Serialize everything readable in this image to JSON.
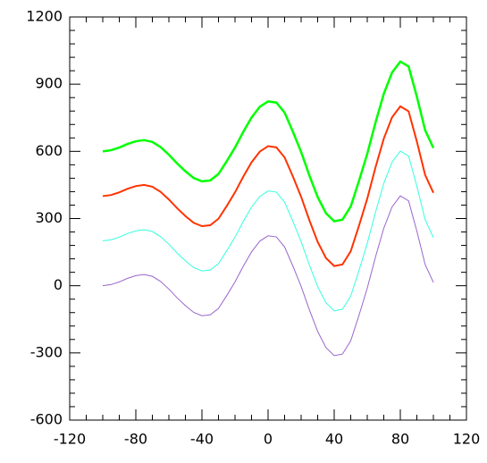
{
  "chart_data": {
    "type": "line",
    "x": [
      -100,
      -95,
      -90,
      -85,
      -80,
      -75,
      -70,
      -65,
      -60,
      -55,
      -50,
      -45,
      -40,
      -35,
      -30,
      -25,
      -20,
      -15,
      -10,
      -5,
      0,
      5,
      10,
      15,
      20,
      25,
      30,
      35,
      40,
      45,
      50,
      55,
      60,
      65,
      70,
      75,
      80,
      85,
      90,
      95,
      100
    ],
    "series": [
      {
        "color": "#9966cc",
        "values": [
          0,
          5,
          17,
          33,
          45,
          50,
          42,
          19,
          -15,
          -54,
          -89,
          -119,
          -134,
          -130,
          -101,
          -44,
          17,
          87,
          151,
          199,
          223,
          218,
          173,
          88,
          -3,
          -108,
          -204,
          -276,
          -312,
          -305,
          -246,
          -132,
          -11,
          129,
          257,
          352,
          401,
          379,
          244,
          95,
          15
        ]
      },
      {
        "color": "#33ffdd",
        "values": [
          200,
          205,
          217,
          233,
          245,
          250,
          242,
          219,
          185,
          146,
          111,
          81,
          66,
          70,
          99,
          156,
          217,
          287,
          351,
          399,
          423,
          418,
          373,
          288,
          197,
          92,
          -4,
          -76,
          -112,
          -105,
          -46,
          68,
          189,
          329,
          457,
          552,
          601,
          579,
          444,
          295,
          215
        ]
      },
      {
        "color": "#ff3300",
        "values": [
          400,
          405,
          417,
          433,
          445,
          450,
          442,
          419,
          385,
          346,
          311,
          281,
          266,
          270,
          299,
          356,
          417,
          487,
          551,
          599,
          623,
          618,
          573,
          488,
          397,
          292,
          196,
          124,
          88,
          95,
          154,
          268,
          389,
          529,
          657,
          752,
          801,
          779,
          644,
          495,
          415
        ]
      },
      {
        "color": "#00ff00",
        "values": [
          600,
          605,
          617,
          633,
          645,
          650,
          642,
          619,
          585,
          546,
          511,
          481,
          466,
          470,
          499,
          556,
          617,
          687,
          751,
          799,
          823,
          818,
          773,
          688,
          597,
          492,
          396,
          324,
          288,
          295,
          354,
          468,
          589,
          729,
          857,
          952,
          1001,
          979,
          844,
          695,
          615
        ]
      }
    ],
    "xlim": [
      -120,
      120
    ],
    "xticks": [
      -120,
      -80,
      -40,
      0,
      40,
      80,
      120
    ],
    "ylim": [
      -600,
      1200
    ],
    "yticks": [
      -600,
      -300,
      0,
      300,
      600,
      900,
      1200
    ]
  }
}
